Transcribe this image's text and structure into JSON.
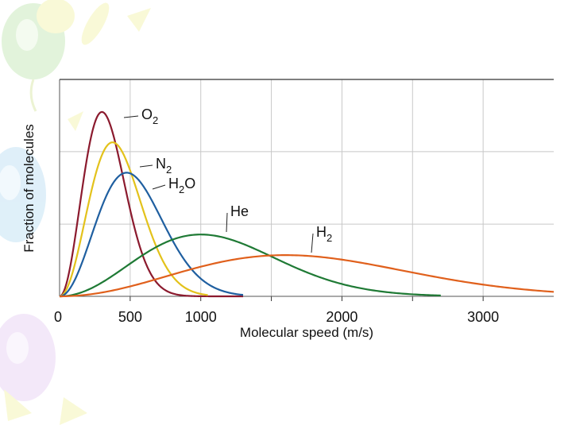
{
  "chart_data": {
    "type": "line",
    "title": "",
    "xlabel": "Molecular speed (m/s)",
    "ylabel": "Fraction of molecules",
    "xlim": [
      0,
      3500
    ],
    "ylim": [
      0,
      1.0
    ],
    "grid": true,
    "x_tick_labels": [
      {
        "value": 0,
        "label": "0"
      },
      {
        "value": 500,
        "label": "500"
      },
      {
        "value": 1000,
        "label": "1000"
      },
      {
        "value": 2000,
        "label": "2000"
      },
      {
        "value": 3000,
        "label": "3000"
      }
    ],
    "gridlines_x": [
      500,
      1000,
      1500,
      2000,
      2500,
      3000
    ],
    "gridlines_y": [
      0.333,
      0.667
    ],
    "series": [
      {
        "name": "O2",
        "label_main": "O",
        "label_sub": "2",
        "color": "#8b1a2e",
        "peak_speed": 300,
        "peak_value": 0.85,
        "x_end": 1300
      },
      {
        "name": "N2",
        "label_main": "N",
        "label_sub": "2",
        "color": "#e3c21b",
        "peak_speed": 375,
        "peak_value": 0.71,
        "x_end": 1050
      },
      {
        "name": "H2O",
        "label_main": "H",
        "label_sub": "2",
        "label_tail": "O",
        "color": "#1f5fa0",
        "peak_speed": 475,
        "peak_value": 0.57,
        "x_end": 1300
      },
      {
        "name": "He",
        "label_main": "He",
        "color": "#1f7a35",
        "peak_speed": 1000,
        "peak_value": 0.285,
        "x_end": 2700
      },
      {
        "name": "H2",
        "label_main": "H",
        "label_sub": "2",
        "color": "#e0601c",
        "peak_speed": 1600,
        "peak_value": 0.19,
        "x_end": 3500
      }
    ]
  }
}
